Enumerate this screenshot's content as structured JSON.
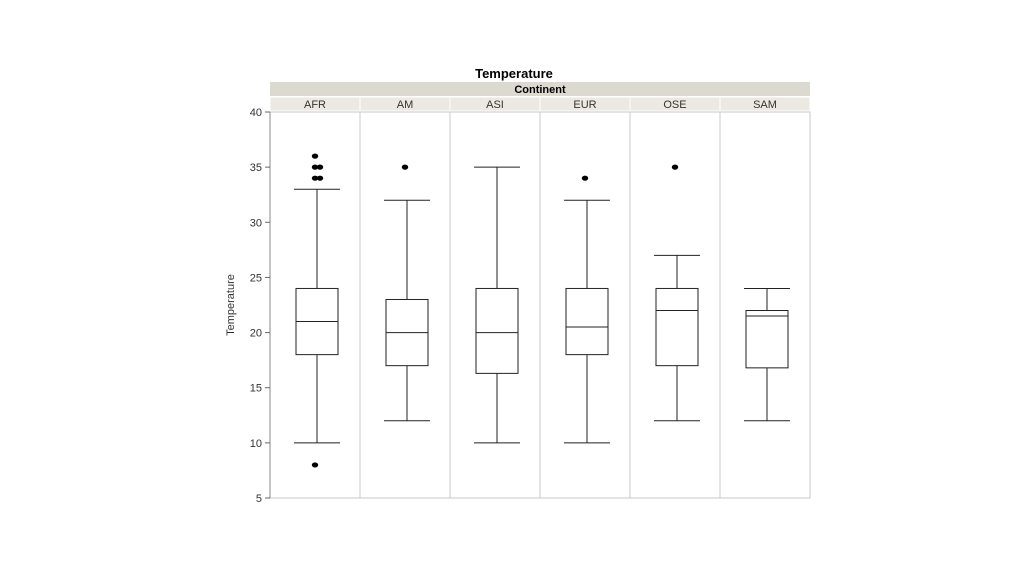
{
  "chart_data": {
    "type": "boxplot",
    "title": "Temperature",
    "group_by_label": "Continent",
    "ylabel": "Temperature",
    "xlabel": "",
    "ylim": [
      5,
      40
    ],
    "yticks": [
      5,
      10,
      15,
      20,
      25,
      30,
      35,
      40
    ],
    "grid": false,
    "categories": [
      "AFR",
      "AM",
      "ASI",
      "EUR",
      "OSE",
      "SAM"
    ],
    "boxes": [
      {
        "category": "AFR",
        "whisker_low": 10,
        "q1": 18,
        "median": 21,
        "q3": 24,
        "whisker_high": 33,
        "outliers": [
          8,
          34,
          34,
          35,
          35,
          36
        ]
      },
      {
        "category": "AM",
        "whisker_low": 12,
        "q1": 17,
        "median": 20,
        "q3": 23,
        "whisker_high": 32,
        "outliers": [
          35
        ]
      },
      {
        "category": "ASI",
        "whisker_low": 10,
        "q1": 16.3,
        "median": 20,
        "q3": 24,
        "whisker_high": 35,
        "outliers": []
      },
      {
        "category": "EUR",
        "whisker_low": 10,
        "q1": 18,
        "median": 20.5,
        "q3": 24,
        "whisker_high": 32,
        "outliers": [
          34
        ]
      },
      {
        "category": "OSE",
        "whisker_low": 12,
        "q1": 17,
        "median": 22,
        "q3": 24,
        "whisker_high": 27,
        "outliers": [
          35
        ]
      },
      {
        "category": "SAM",
        "whisker_low": 12,
        "q1": 16.8,
        "median": 21.5,
        "q3": 22,
        "whisker_high": 24,
        "outliers": []
      }
    ]
  },
  "colors": {
    "header_band": "#dcdad0",
    "category_band": "#ebe9e1",
    "panel_border": "#c8c8c8",
    "box_stroke": "#222222",
    "outlier_fill": "#000000"
  }
}
